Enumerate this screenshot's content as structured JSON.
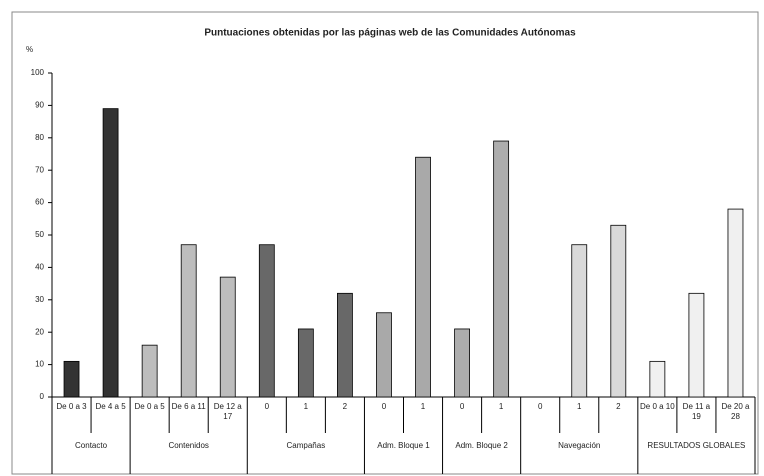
{
  "chart_data": {
    "type": "bar",
    "title": "Puntuaciones obtenidas por las páginas web de las Comunidades Autónomas",
    "y_label": "%",
    "ylim": [
      0,
      100
    ],
    "yticks": [
      0,
      10,
      20,
      30,
      40,
      50,
      60,
      70,
      80,
      90,
      100
    ],
    "groups": [
      {
        "label": "Contacto",
        "color": "#333333",
        "categories": [
          "De 0 a 3",
          "De 4 a 5"
        ],
        "values": [
          11,
          89
        ]
      },
      {
        "label": "Contenidos",
        "color": "#bdbdbd",
        "categories": [
          "De 0 a 5",
          "De 6 a 11",
          "De 12 a 17"
        ],
        "values": [
          16,
          47,
          37
        ]
      },
      {
        "label": "Campañas",
        "color": "#686868",
        "categories": [
          "0",
          "1",
          "2"
        ],
        "values": [
          47,
          21,
          32
        ]
      },
      {
        "label": "Adm. Bloque 1",
        "color": "#a9a9a9",
        "categories": [
          "0",
          "1"
        ],
        "values": [
          26,
          74
        ]
      },
      {
        "label": "Adm. Bloque 2",
        "color": "#adadad",
        "categories": [
          "0",
          "1"
        ],
        "values": [
          21,
          79
        ]
      },
      {
        "label": "Navegación",
        "color": "#d9d9d9",
        "categories": [
          "0",
          "1",
          "2"
        ],
        "values": [
          0,
          47,
          53
        ]
      },
      {
        "label": "RESULTADOS GLOBALES",
        "color": "#f0f0f0",
        "categories": [
          "De 0 a 10",
          "De 11 a 19",
          "De 20 a 28"
        ],
        "values": [
          11,
          32,
          58
        ]
      }
    ]
  }
}
